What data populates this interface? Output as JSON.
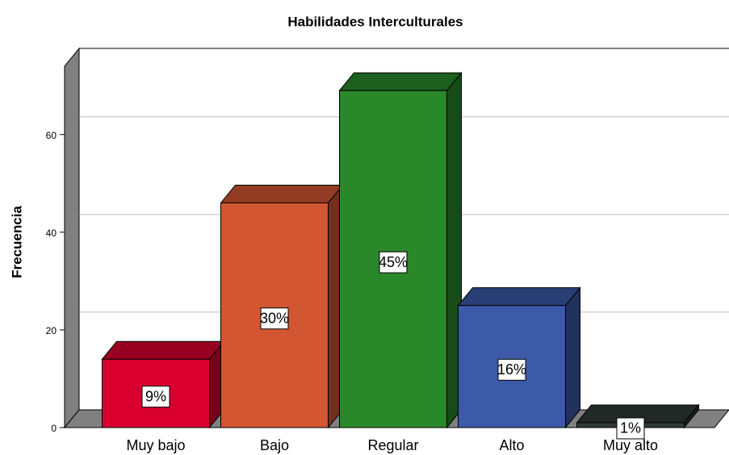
{
  "chart_data": {
    "type": "bar3d",
    "title": "Habilidades Interculturales",
    "ylabel": "Frecuencia",
    "categories": [
      "Muy bajo",
      "Bajo",
      "Regular",
      "Alto",
      "Muy alto"
    ],
    "values": [
      14,
      46,
      69,
      25,
      1
    ],
    "data_labels": [
      "9%",
      "30%",
      "45%",
      "16%",
      "1%"
    ],
    "colors": [
      "#d9002f",
      "#d35632",
      "#2a882a",
      "#3c5aa8",
      "#2f3a36"
    ],
    "ylim": [
      0,
      74
    ],
    "yticks": [
      0,
      20,
      40,
      60
    ],
    "grid": true
  }
}
